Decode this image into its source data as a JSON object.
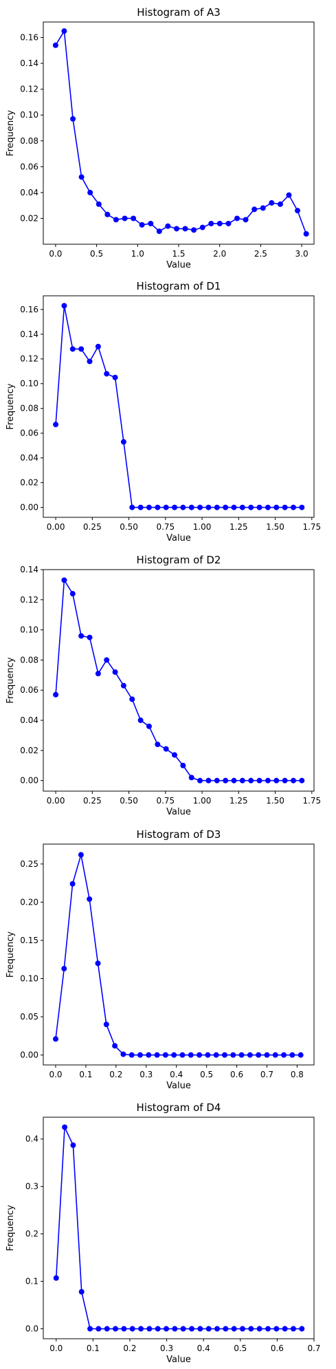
{
  "chart_data": [
    {
      "type": "line",
      "title": "Histogram of A3",
      "xlabel": "Value",
      "ylabel": "Frequency",
      "xlim": [
        -0.15,
        3.15
      ],
      "ylim": [
        0.0,
        0.172
      ],
      "xticks": [
        0.0,
        0.5,
        1.0,
        1.5,
        2.0,
        2.5,
        3.0
      ],
      "xtick_labels": [
        "0.0",
        "0.5",
        "1.0",
        "1.5",
        "2.0",
        "2.5",
        "3.0"
      ],
      "yticks": [
        0.02,
        0.04,
        0.06,
        0.08,
        0.1,
        0.12,
        0.14,
        0.16
      ],
      "ytick_labels": [
        "0.02",
        "0.04",
        "0.06",
        "0.08",
        "0.10",
        "0.12",
        "0.14",
        "0.16"
      ],
      "grid": false,
      "color": "#0000ff",
      "series": [
        {
          "x": [
            0.0,
            0.105,
            0.211,
            0.316,
            0.421,
            0.527,
            0.632,
            0.737,
            0.843,
            0.948,
            1.053,
            1.159,
            1.264,
            1.369,
            1.475,
            1.58,
            1.685,
            1.791,
            1.896,
            2.001,
            2.107,
            2.212,
            2.317,
            2.423,
            2.528,
            2.633,
            2.739,
            2.844,
            2.949,
            3.055
          ],
          "values": [
            0.154,
            0.165,
            0.097,
            0.052,
            0.04,
            0.031,
            0.023,
            0.019,
            0.02,
            0.02,
            0.015,
            0.016,
            0.01,
            0.014,
            0.012,
            0.012,
            0.011,
            0.013,
            0.016,
            0.016,
            0.016,
            0.02,
            0.019,
            0.027,
            0.028,
            0.032,
            0.031,
            0.038,
            0.026,
            0.008
          ]
        }
      ]
    },
    {
      "type": "line",
      "title": "Histogram of D1",
      "xlabel": "Value",
      "ylabel": "Frequency",
      "xlim": [
        -0.085,
        1.765
      ],
      "ylim": [
        -0.008,
        0.171
      ],
      "xticks": [
        0.0,
        0.25,
        0.5,
        0.75,
        1.0,
        1.25,
        1.5,
        1.75
      ],
      "xtick_labels": [
        "0.00",
        "0.25",
        "0.50",
        "0.75",
        "1.00",
        "1.25",
        "1.50",
        "1.75"
      ],
      "yticks": [
        0.0,
        0.02,
        0.04,
        0.06,
        0.08,
        0.1,
        0.12,
        0.14,
        0.16
      ],
      "ytick_labels": [
        "0.00",
        "0.02",
        "0.04",
        "0.06",
        "0.08",
        "0.10",
        "0.12",
        "0.14",
        "0.16"
      ],
      "grid": false,
      "color": "#0000ff",
      "series": [
        {
          "x": [
            0.0,
            0.058,
            0.116,
            0.174,
            0.232,
            0.29,
            0.348,
            0.406,
            0.464,
            0.522,
            0.58,
            0.638,
            0.696,
            0.754,
            0.812,
            0.87,
            0.928,
            0.986,
            1.044,
            1.102,
            1.16,
            1.218,
            1.276,
            1.334,
            1.392,
            1.45,
            1.508,
            1.566,
            1.624,
            1.682
          ],
          "values": [
            0.067,
            0.163,
            0.128,
            0.128,
            0.118,
            0.13,
            0.108,
            0.105,
            0.053,
            0.0,
            0.0,
            0.0,
            0.0,
            0.0,
            0.0,
            0.0,
            0.0,
            0.0,
            0.0,
            0.0,
            0.0,
            0.0,
            0.0,
            0.0,
            0.0,
            0.0,
            0.0,
            0.0,
            0.0,
            0.0
          ]
        }
      ]
    },
    {
      "type": "line",
      "title": "Histogram of D2",
      "xlabel": "Value",
      "ylabel": "Frequency",
      "xlim": [
        -0.085,
        1.765
      ],
      "ylim": [
        -0.007,
        0.14
      ],
      "xticks": [
        0.0,
        0.25,
        0.5,
        0.75,
        1.0,
        1.25,
        1.5,
        1.75
      ],
      "xtick_labels": [
        "0.00",
        "0.25",
        "0.50",
        "0.75",
        "1.00",
        "1.25",
        "1.50",
        "1.75"
      ],
      "yticks": [
        0.0,
        0.02,
        0.04,
        0.06,
        0.08,
        0.1,
        0.12,
        0.14
      ],
      "ytick_labels": [
        "0.00",
        "0.02",
        "0.04",
        "0.06",
        "0.08",
        "0.10",
        "0.12",
        "0.14"
      ],
      "grid": false,
      "color": "#0000ff",
      "series": [
        {
          "x": [
            0.0,
            0.058,
            0.116,
            0.174,
            0.232,
            0.29,
            0.348,
            0.406,
            0.464,
            0.522,
            0.58,
            0.638,
            0.696,
            0.754,
            0.812,
            0.87,
            0.928,
            0.986,
            1.044,
            1.102,
            1.16,
            1.218,
            1.276,
            1.334,
            1.392,
            1.45,
            1.508,
            1.566,
            1.624,
            1.682
          ],
          "values": [
            0.057,
            0.133,
            0.124,
            0.096,
            0.095,
            0.071,
            0.08,
            0.072,
            0.063,
            0.054,
            0.04,
            0.036,
            0.024,
            0.021,
            0.017,
            0.01,
            0.002,
            0.0,
            0.0,
            0.0,
            0.0,
            0.0,
            0.0,
            0.0,
            0.0,
            0.0,
            0.0,
            0.0,
            0.0,
            0.0
          ]
        }
      ]
    },
    {
      "type": "line",
      "title": "Histogram of D3",
      "xlabel": "Value",
      "ylabel": "Frequency",
      "xlim": [
        -0.041,
        0.856
      ],
      "ylim": [
        -0.013,
        0.276
      ],
      "xticks": [
        0.0,
        0.1,
        0.2,
        0.3,
        0.4,
        0.5,
        0.6,
        0.7,
        0.8
      ],
      "xtick_labels": [
        "0.0",
        "0.1",
        "0.2",
        "0.3",
        "0.4",
        "0.5",
        "0.6",
        "0.7",
        "0.8"
      ],
      "yticks": [
        0.0,
        0.05,
        0.1,
        0.15,
        0.2,
        0.25
      ],
      "ytick_labels": [
        "0.00",
        "0.05",
        "0.10",
        "0.15",
        "0.20",
        "0.25"
      ],
      "grid": false,
      "color": "#0000ff",
      "series": [
        {
          "x": [
            0.0,
            0.028,
            0.056,
            0.084,
            0.112,
            0.14,
            0.168,
            0.196,
            0.224,
            0.252,
            0.28,
            0.308,
            0.336,
            0.364,
            0.392,
            0.42,
            0.448,
            0.476,
            0.504,
            0.532,
            0.56,
            0.588,
            0.616,
            0.644,
            0.672,
            0.7,
            0.728,
            0.756,
            0.784,
            0.812
          ],
          "values": [
            0.021,
            0.113,
            0.224,
            0.262,
            0.204,
            0.12,
            0.04,
            0.012,
            0.001,
            0.0,
            0.0,
            0.0,
            0.0,
            0.0,
            0.0,
            0.0,
            0.0,
            0.0,
            0.0,
            0.0,
            0.0,
            0.0,
            0.0,
            0.0,
            0.0,
            0.0,
            0.0,
            0.0,
            0.0,
            0.0
          ]
        }
      ]
    },
    {
      "type": "line",
      "title": "Histogram of D4",
      "xlabel": "Value",
      "ylabel": "Frequency",
      "xlim": [
        -0.035,
        0.7
      ],
      "ylim": [
        -0.021,
        0.446
      ],
      "xticks": [
        0.0,
        0.1,
        0.2,
        0.3,
        0.4,
        0.5,
        0.6,
        0.7
      ],
      "xtick_labels": [
        "0.0",
        "0.1",
        "0.2",
        "0.3",
        "0.4",
        "0.5",
        "0.6",
        "0.7"
      ],
      "yticks": [
        0.0,
        0.1,
        0.2,
        0.3,
        0.4
      ],
      "ytick_labels": [
        "0.0",
        "0.1",
        "0.2",
        "0.3",
        "0.4"
      ],
      "grid": false,
      "color": "#0000ff",
      "series": [
        {
          "x": [
            0.0,
            0.023,
            0.046,
            0.069,
            0.092,
            0.115,
            0.138,
            0.161,
            0.184,
            0.207,
            0.23,
            0.253,
            0.276,
            0.299,
            0.322,
            0.345,
            0.368,
            0.391,
            0.414,
            0.437,
            0.46,
            0.483,
            0.506,
            0.529,
            0.552,
            0.575,
            0.598,
            0.621,
            0.644,
            0.667
          ],
          "values": [
            0.107,
            0.425,
            0.387,
            0.078,
            0.0,
            0.0,
            0.0,
            0.0,
            0.0,
            0.0,
            0.0,
            0.0,
            0.0,
            0.0,
            0.0,
            0.0,
            0.0,
            0.0,
            0.0,
            0.0,
            0.0,
            0.0,
            0.0,
            0.0,
            0.0,
            0.0,
            0.0,
            0.0,
            0.0,
            0.0
          ]
        }
      ]
    }
  ]
}
